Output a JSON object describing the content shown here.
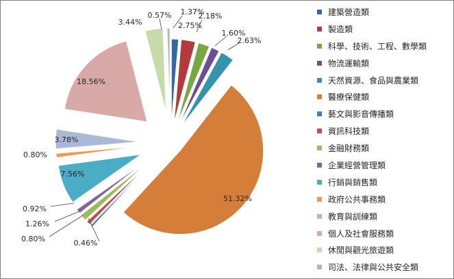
{
  "chart_data": {
    "type": "pie",
    "title": "",
    "legend_position": "right",
    "exploded": true,
    "slices": [
      {
        "label": "建築營造類",
        "value": 1.37,
        "display": "1.37%",
        "color": "#2e6ba7"
      },
      {
        "label": "製造類",
        "value": 2.75,
        "display": "2.75%",
        "color": "#b23a3a"
      },
      {
        "label": "科學、技術、工程、數學類",
        "value": 2.18,
        "display": "2.18%",
        "color": "#79a743"
      },
      {
        "label": "物流運輸類",
        "value": 1.6,
        "display": "1.60%",
        "color": "#6b4f94"
      },
      {
        "label": "天然資源、食品與農業類",
        "value": 2.63,
        "display": "2.63%",
        "color": "#3394ab"
      },
      {
        "label": "醫療保健類",
        "value": 51.32,
        "display": "51.32%",
        "color": "#d57e3a"
      },
      {
        "label": "藝文與影音傳播類",
        "value": 0.46,
        "display": "0.46%",
        "color": "#4a7ab9"
      },
      {
        "label": "資訊科技類",
        "value": 0.8,
        "display": "0.80%",
        "color": "#c0504d"
      },
      {
        "label": "金融財務類",
        "value": 1.26,
        "display": "1.26%",
        "color": "#9bbb59"
      },
      {
        "label": "企業經營管理類",
        "value": 0.92,
        "display": "0.92%",
        "color": "#8064a2"
      },
      {
        "label": "行銷與銷售類",
        "value": 7.56,
        "display": "7.56%",
        "color": "#4bacc6"
      },
      {
        "label": "政府公共事務類",
        "value": 0.8,
        "display": "0.80%",
        "color": "#f79646"
      },
      {
        "label": "教育與訓練類",
        "value": 3.78,
        "display": "3.78%",
        "color": "#a9b9d8"
      },
      {
        "label": "個人及社會服務類",
        "value": 18.56,
        "display": "18.56%",
        "color": "#d9a9a8"
      },
      {
        "label": "休閒與觀光旅遊類",
        "value": 3.44,
        "display": "3.44%",
        "color": "#c7dba8"
      },
      {
        "label": "司法、法律與公共安全類",
        "value": 0.57,
        "display": "0.57%",
        "color": "#b9b0cc"
      }
    ]
  }
}
